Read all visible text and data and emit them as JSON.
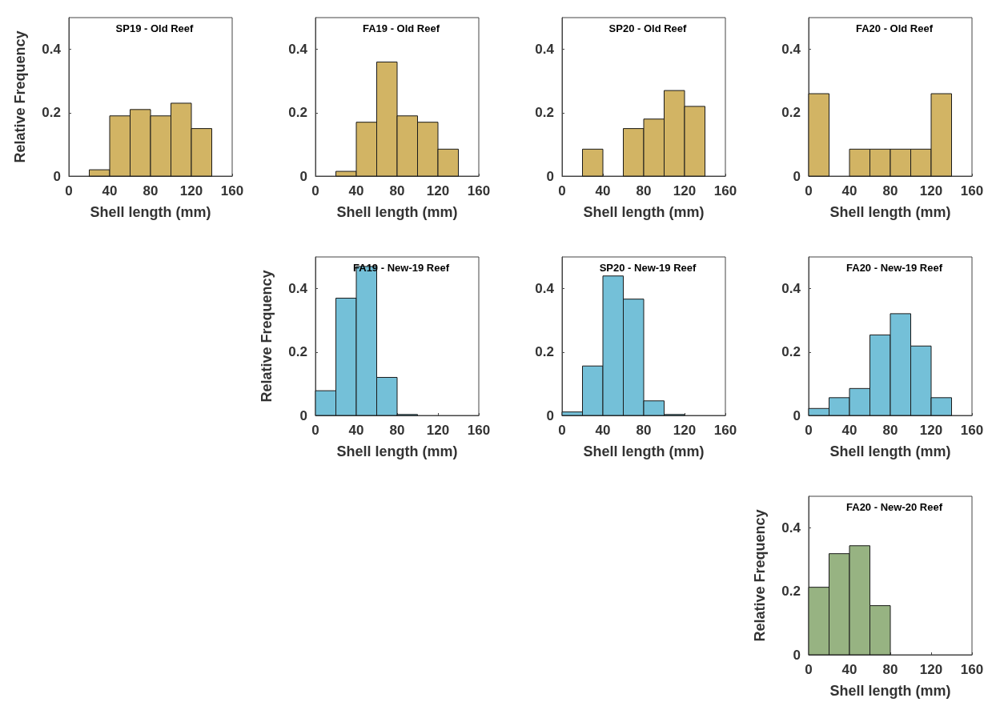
{
  "chart_data": [
    {
      "type": "histogram",
      "title": "SP19 - Old Reef",
      "xlabel": "Shell length (mm)",
      "ylabel": "Relative Frequency",
      "bins": [
        0,
        20,
        40,
        60,
        80,
        100,
        120,
        140,
        160
      ],
      "values": [
        0,
        0.02,
        0.19,
        0.21,
        0.19,
        0.23,
        0.15,
        0
      ],
      "color": "#d2b464",
      "xlim": [
        0,
        160
      ],
      "xticks": [
        0,
        40,
        80,
        120,
        160
      ],
      "ylim": [
        0,
        0.5
      ],
      "yticks": [
        0,
        0.2,
        0.4
      ],
      "grid": false
    },
    {
      "type": "histogram",
      "title": "FA19 - Old Reef",
      "xlabel": "Shell length (mm)",
      "bins": [
        0,
        20,
        40,
        60,
        80,
        100,
        120,
        140,
        160
      ],
      "values": [
        0,
        0.015,
        0.17,
        0.36,
        0.19,
        0.17,
        0.085,
        0
      ],
      "color": "#d2b464",
      "xlim": [
        0,
        160
      ],
      "xticks": [
        0,
        40,
        80,
        120,
        160
      ],
      "ylim": [
        0,
        0.5
      ],
      "yticks": [
        0,
        0.2,
        0.4
      ],
      "grid": false
    },
    {
      "type": "histogram",
      "title": "SP20 - Old Reef",
      "xlabel": "Shell length (mm)",
      "bins": [
        0,
        20,
        40,
        60,
        80,
        100,
        120,
        140,
        160
      ],
      "values": [
        0,
        0.085,
        0,
        0.15,
        0.18,
        0.27,
        0.22,
        0
      ],
      "color": "#d2b464",
      "xlim": [
        0,
        160
      ],
      "xticks": [
        0,
        40,
        80,
        120,
        160
      ],
      "ylim": [
        0,
        0.5
      ],
      "yticks": [
        0,
        0.2,
        0.4
      ],
      "grid": false
    },
    {
      "type": "histogram",
      "title": "FA20 - Old Reef",
      "xlabel": "Shell length (mm)",
      "bins": [
        0,
        20,
        40,
        60,
        80,
        100,
        120,
        140,
        160
      ],
      "values": [
        0.26,
        0,
        0.085,
        0.085,
        0.085,
        0.085,
        0.26,
        0
      ],
      "color": "#d2b464",
      "xlim": [
        0,
        160
      ],
      "xticks": [
        0,
        40,
        80,
        120,
        160
      ],
      "ylim": [
        0,
        0.5
      ],
      "yticks": [
        0,
        0.2,
        0.4
      ],
      "grid": false
    },
    {
      "type": "histogram",
      "title": "FA19 - New-19 Reef",
      "xlabel": "Shell length (mm)",
      "ylabel": "Relative Frequency",
      "bins": [
        0,
        20,
        40,
        60,
        80,
        100,
        120,
        140,
        160
      ],
      "values": [
        0.078,
        0.37,
        0.47,
        0.12,
        0.003,
        0,
        0,
        0
      ],
      "color": "#74c0d8",
      "xlim": [
        0,
        160
      ],
      "xticks": [
        0,
        40,
        80,
        120,
        160
      ],
      "ylim": [
        0,
        0.5
      ],
      "yticks": [
        0,
        0.2,
        0.4
      ],
      "grid": false
    },
    {
      "type": "histogram",
      "title": "SP20 - New-19 Reef",
      "xlabel": "Shell length (mm)",
      "bins": [
        0,
        20,
        40,
        60,
        80,
        100,
        120,
        140,
        160
      ],
      "values": [
        0.011,
        0.156,
        0.44,
        0.367,
        0.046,
        0.003,
        0,
        0
      ],
      "color": "#74c0d8",
      "xlim": [
        0,
        160
      ],
      "xticks": [
        0,
        40,
        80,
        120,
        160
      ],
      "ylim": [
        0,
        0.5
      ],
      "yticks": [
        0,
        0.2,
        0.4
      ],
      "grid": false
    },
    {
      "type": "histogram",
      "title": "FA20 - New-19 Reef",
      "xlabel": "Shell length (mm)",
      "bins": [
        0,
        20,
        40,
        60,
        80,
        100,
        120,
        140,
        160
      ],
      "values": [
        0.022,
        0.056,
        0.085,
        0.254,
        0.321,
        0.219,
        0.056,
        0
      ],
      "color": "#74c0d8",
      "xlim": [
        0,
        160
      ],
      "xticks": [
        0,
        40,
        80,
        120,
        160
      ],
      "ylim": [
        0,
        0.5
      ],
      "yticks": [
        0,
        0.2,
        0.4
      ],
      "grid": false
    },
    {
      "type": "histogram",
      "title": "FA20 - New-20 Reef",
      "xlabel": "Shell length (mm)",
      "ylabel": "Relative Frequency",
      "bins": [
        0,
        20,
        40,
        60,
        80,
        100,
        120,
        140,
        160
      ],
      "values": [
        0.213,
        0.319,
        0.344,
        0.155,
        0,
        0,
        0,
        0
      ],
      "color": "#97b382",
      "xlim": [
        0,
        160
      ],
      "xticks": [
        0,
        40,
        80,
        120,
        160
      ],
      "ylim": [
        0,
        0.5
      ],
      "yticks": [
        0,
        0.2,
        0.4
      ],
      "grid": false
    }
  ]
}
